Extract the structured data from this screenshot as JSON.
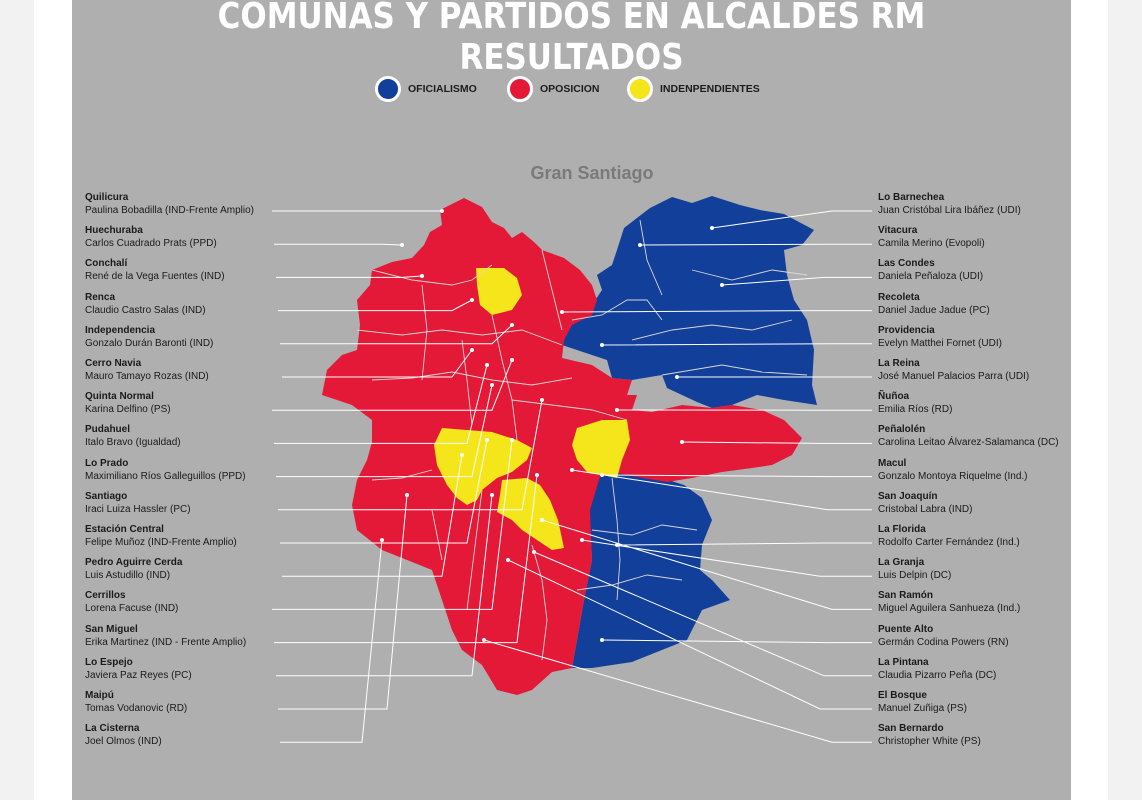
{
  "title": "COMUNAS Y PARTIDOS EN ALCALDES RM RESULTADOS",
  "map_title": "Gran Santiago",
  "legend": [
    {
      "label": "OFICIALISMO",
      "color": "#123f9a"
    },
    {
      "label": "OPOSICION",
      "color": "#e31937"
    },
    {
      "label": "INDENPENDIENTES",
      "color": "#f5e51b"
    }
  ],
  "colors": {
    "panel": "#afafaf",
    "blue": "#123f9a",
    "red": "#e31937",
    "yellow": "#f5e51b"
  },
  "left_labels": [
    {
      "comuna": "Quilicura",
      "mayor": "Paulina Bobadilla (IND-Frente Amplio)"
    },
    {
      "comuna": "Huechuraba",
      "mayor": "Carlos Cuadrado Prats (PPD)"
    },
    {
      "comuna": "Conchalí",
      "mayor": "René de la Vega Fuentes (IND)"
    },
    {
      "comuna": "Renca",
      "mayor": "Claudio Castro Salas (IND)"
    },
    {
      "comuna": "Independencia",
      "mayor": "Gonzalo Durán Baronti (IND)"
    },
    {
      "comuna": "Cerro Navia",
      "mayor": "Mauro Tamayo Rozas (IND)"
    },
    {
      "comuna": "Quinta Normal",
      "mayor": "Karina Delfino (PS)"
    },
    {
      "comuna": "Pudahuel",
      "mayor": "Italo Bravo (Igualdad)"
    },
    {
      "comuna": "Lo Prado",
      "mayor": "Maximiliano Ríos Galleguillos (PPD)"
    },
    {
      "comuna": "Santiago",
      "mayor": "Iraci Luiza Hassler (PC)"
    },
    {
      "comuna": "Estación Central",
      "mayor": "Felipe Muñoz (IND-Frente Amplio)"
    },
    {
      "comuna": "Pedro Aguirre Cerda",
      "mayor": "Luis Astudillo (IND)"
    },
    {
      "comuna": "Cerrillos",
      "mayor": "Lorena Facuse (IND)"
    },
    {
      "comuna": "San Miguel",
      "mayor": "Erika Martinez (IND - Frente Amplio)"
    },
    {
      "comuna": "Lo Espejo",
      "mayor": "Javiera Paz Reyes (PC)"
    },
    {
      "comuna": "Maipú",
      "mayor": "Tomas Vodanovic (RD)"
    },
    {
      "comuna": "La Cisterna",
      "mayor": "Joel Olmos (IND)"
    }
  ],
  "right_labels": [
    {
      "comuna": "Lo Barnechea",
      "mayor": "Juan Cristóbal Lira Ibáñez (UDI)"
    },
    {
      "comuna": "Vitacura",
      "mayor": "Camila Merino (Evopoli)"
    },
    {
      "comuna": "Las Condes",
      "mayor": "Daniela Peñaloza (UDI)"
    },
    {
      "comuna": "Recoleta",
      "mayor": "Daniel Jadue Jadue (PC)"
    },
    {
      "comuna": "Providencia",
      "mayor": "Evelyn Matthei Fornet (UDI)"
    },
    {
      "comuna": "La Reina",
      "mayor": "José Manuel Palacios Parra (UDI)"
    },
    {
      "comuna": "Ñuñoa",
      "mayor": "Emilia Ríos (RD)"
    },
    {
      "comuna": "Peñalolén",
      "mayor": "Carolina Leitao Álvarez-Salamanca (DC)"
    },
    {
      "comuna": "Macul",
      "mayor": "Gonzalo Montoya Riquelme (Ind.)"
    },
    {
      "comuna": "San Joaquín",
      "mayor": "Cristobal Labra (IND)"
    },
    {
      "comuna": "La Florida",
      "mayor": "Rodolfo Carter Fernández (Ind.)"
    },
    {
      "comuna": "La Granja",
      "mayor": "Luis Delpin (DC)"
    },
    {
      "comuna": "San Ramón",
      "mayor": "Miguel Aguilera Sanhueza (Ind.)"
    },
    {
      "comuna": "Puente Alto",
      "mayor": "Germán Codina Powers (RN)"
    },
    {
      "comuna": "La Pintana",
      "mayor": "Claudia Pizarro Peña (DC)"
    },
    {
      "comuna": "El Bosque",
      "mayor": "Manuel Zuñiga (PS)"
    },
    {
      "comuna": "San Bernardo",
      "mayor": "Christopher White (PS)"
    }
  ]
}
